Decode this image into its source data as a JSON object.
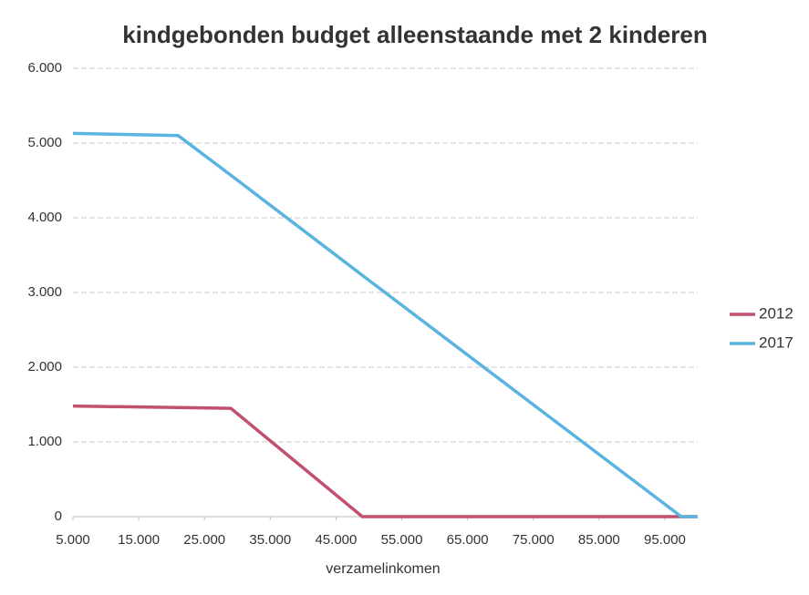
{
  "chart_data": {
    "type": "line",
    "title": "kindgebonden budget alleenstaande met 2 kinderen",
    "x_label": "verzamelinkomen",
    "x": [
      5000,
      21000,
      29000,
      49000,
      97500,
      100000
    ],
    "series": [
      {
        "name": "2012",
        "color": "#c0506e",
        "values": [
          1480,
          1460,
          1450,
          0,
          0,
          0
        ]
      },
      {
        "name": "2017",
        "color": "#5ab4e0",
        "values": [
          5130,
          5100,
          4570,
          3230,
          0,
          0
        ]
      }
    ],
    "xlim": [
      5000,
      100000
    ],
    "xticks": [
      {
        "value": 5000,
        "label": "5.000"
      },
      {
        "value": 15000,
        "label": "15.000"
      },
      {
        "value": 25000,
        "label": "25.000"
      },
      {
        "value": 35000,
        "label": "35.000"
      },
      {
        "value": 45000,
        "label": "45.000"
      },
      {
        "value": 55000,
        "label": "55.000"
      },
      {
        "value": 65000,
        "label": "65.000"
      },
      {
        "value": 75000,
        "label": "75.000"
      },
      {
        "value": 85000,
        "label": "85.000"
      },
      {
        "value": 95000,
        "label": "95.000"
      }
    ],
    "ylim": [
      0,
      6000
    ],
    "yticks": [
      0,
      {
        "value": 1000,
        "label": "1.000"
      },
      {
        "value": 2000,
        "label": "2.000"
      },
      {
        "value": 3000,
        "label": "3.000"
      },
      {
        "value": 4000,
        "label": "4.000"
      },
      {
        "value": 5000,
        "label": "5.000"
      },
      {
        "value": 6000,
        "label": "6.000"
      }
    ],
    "grid": true,
    "legend": "right"
  }
}
